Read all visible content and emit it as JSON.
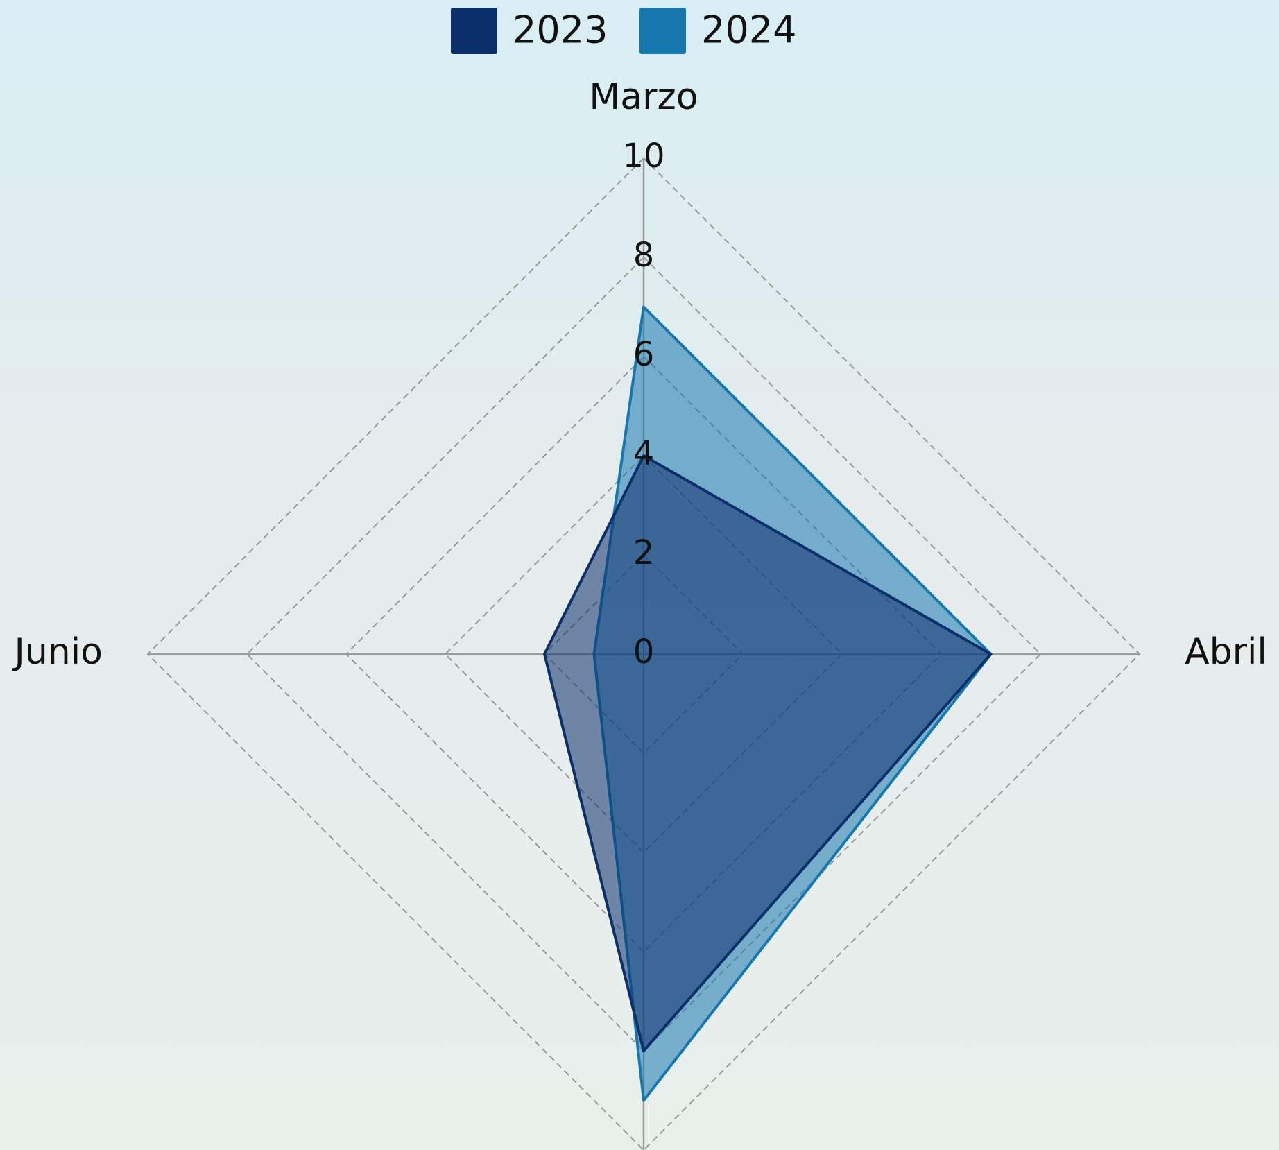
{
  "chart_data": {
    "type": "radar",
    "categories": [
      "Marzo",
      "Abril",
      null,
      "Junio"
    ],
    "series": [
      {
        "name": "2023",
        "color": "#0b2f6b",
        "values": [
          4,
          7,
          8,
          2
        ]
      },
      {
        "name": "2024",
        "color": "#1778b0",
        "values": [
          7,
          7,
          9,
          1
        ]
      }
    ],
    "rlim": [
      0,
      10
    ],
    "rticks": [
      0,
      2,
      4,
      6,
      8,
      10
    ],
    "grid": true,
    "legend": "top"
  }
}
